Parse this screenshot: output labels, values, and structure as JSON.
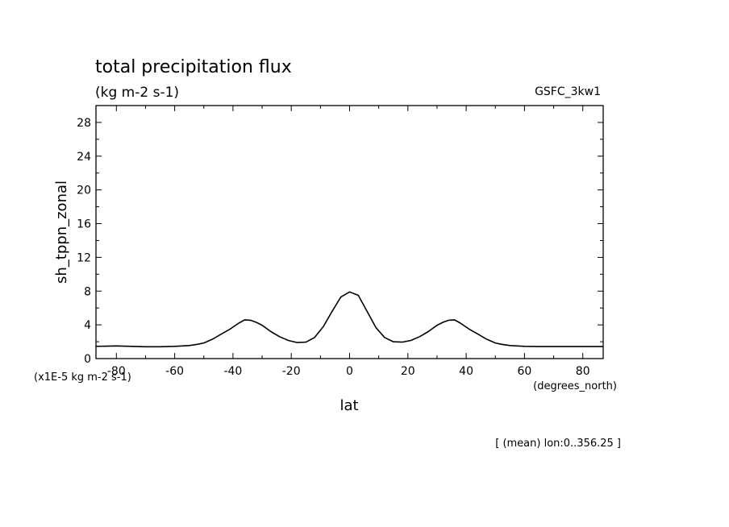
{
  "chart_data": {
    "type": "line",
    "title": "total precipitation flux",
    "subtitle": "(kg m-2 s-1)",
    "source_label": "GSFC_3kw1",
    "ylabel": "sh_tppn_zonal",
    "yunits": "(x1E-5 kg m-2 s-1)",
    "xlabel": "lat",
    "xunits": "(degrees_north)",
    "footnote": "[ (mean) lon:0..356.25 ]",
    "xlim": [
      -87,
      87
    ],
    "ylim": [
      0,
      30
    ],
    "xticks": [
      -80,
      -60,
      -40,
      -20,
      0,
      20,
      40,
      60,
      80
    ],
    "yticks": [
      0,
      4,
      8,
      12,
      16,
      20,
      24,
      28
    ],
    "xtick_labels": [
      "-80",
      "-60",
      "-40",
      "-20",
      "0",
      "20",
      "40",
      "60",
      "80"
    ],
    "ytick_labels": [
      "0",
      "4",
      "8",
      "12",
      "16",
      "20",
      "24",
      "28"
    ],
    "grid": false,
    "series": [
      {
        "x": [
          -87,
          -80,
          -75,
          -70,
          -65,
          -60,
          -55,
          -52,
          -50,
          -47,
          -44,
          -41,
          -38,
          -36,
          -34,
          -32,
          -30,
          -27,
          -24,
          -21,
          -18,
          -15,
          -12,
          -9,
          -6,
          -3,
          0,
          3,
          6,
          9,
          12,
          15,
          18,
          21,
          24,
          27,
          30,
          32,
          34,
          36,
          38,
          41,
          44,
          47,
          50,
          52,
          55,
          60,
          65,
          70,
          75,
          80,
          87
        ],
        "y": [
          1.45,
          1.5,
          1.45,
          1.4,
          1.4,
          1.45,
          1.55,
          1.7,
          1.85,
          2.3,
          2.9,
          3.5,
          4.2,
          4.6,
          4.55,
          4.3,
          3.95,
          3.2,
          2.6,
          2.15,
          1.9,
          1.95,
          2.5,
          3.8,
          5.6,
          7.3,
          7.9,
          7.5,
          5.6,
          3.7,
          2.5,
          2.0,
          1.95,
          2.15,
          2.6,
          3.2,
          3.95,
          4.3,
          4.55,
          4.6,
          4.2,
          3.5,
          2.9,
          2.3,
          1.85,
          1.7,
          1.55,
          1.45,
          1.42,
          1.42,
          1.42,
          1.42,
          1.42
        ]
      }
    ]
  }
}
